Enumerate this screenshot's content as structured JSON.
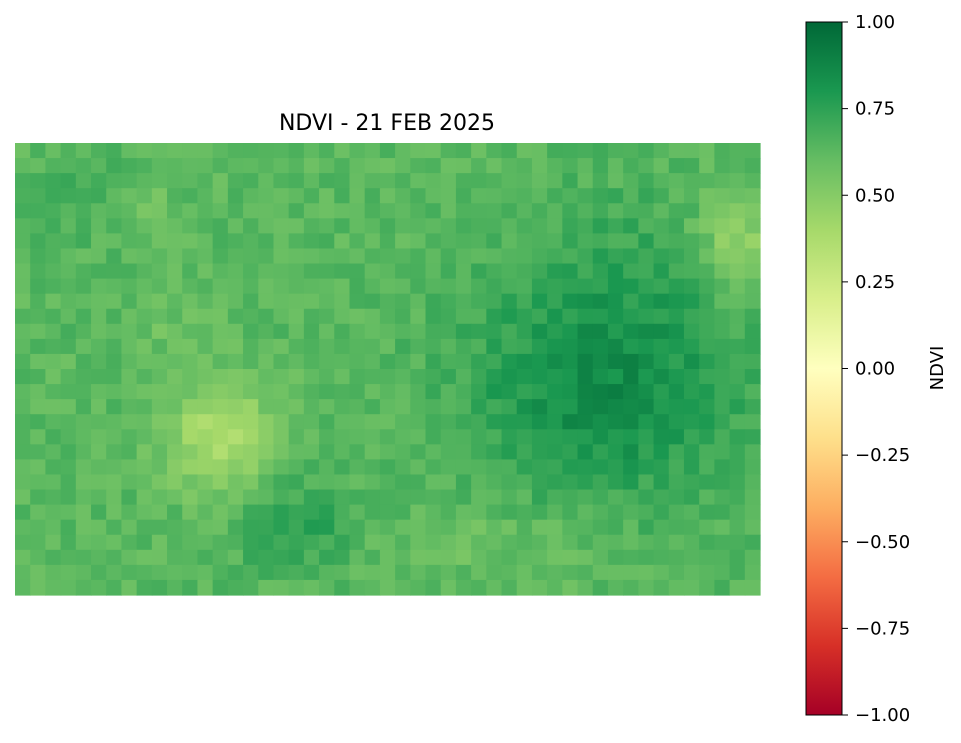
{
  "chart_data": {
    "type": "heatmap",
    "title": "NDVI - 21 FEB 2025",
    "colorbar": {
      "label": "NDVI",
      "range": [
        -1.0,
        1.0
      ],
      "ticks": [
        1.0,
        0.75,
        0.5,
        0.25,
        0.0,
        -0.25,
        -0.5,
        -0.75,
        -1.0
      ],
      "tick_labels": [
        "1.00",
        "0.75",
        "0.50",
        "0.25",
        "0.00",
        "−0.25",
        "−0.50",
        "−0.75",
        "−1.00"
      ],
      "colormap": "RdYlGn",
      "colormap_stops": [
        "#a50026",
        "#d73027",
        "#f46d43",
        "#fdae61",
        "#fee08b",
        "#ffffbf",
        "#d9ef8b",
        "#a6d96a",
        "#66bd63",
        "#1a9850",
        "#006837"
      ]
    },
    "grid": {
      "rows": 30,
      "cols": 49,
      "value_range": [
        0.29,
        0.93
      ],
      "dominant_range": [
        0.55,
        0.85
      ],
      "notes": "pixelated NDVI raster; dense vegetation cluster right-center, brighter low-NDVI patches left-center and top-right"
    },
    "axes_visible": false
  }
}
